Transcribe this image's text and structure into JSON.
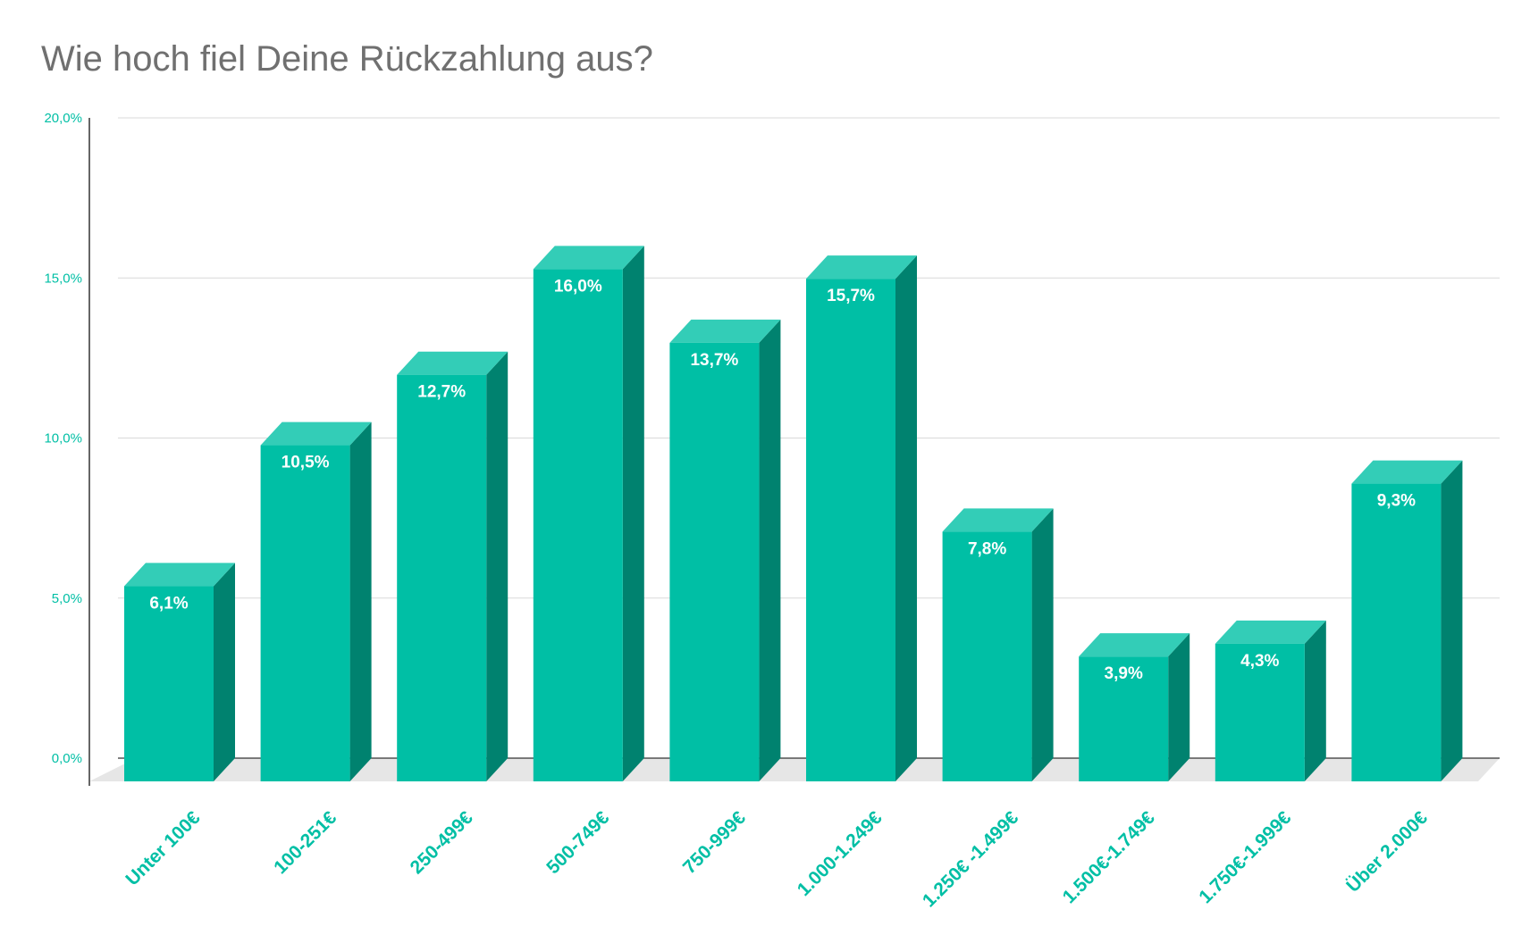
{
  "chart_data": {
    "type": "bar",
    "title": "Wie hoch fiel Deine Rückzahlung aus?",
    "xlabel": "",
    "ylabel": "",
    "ylim": [
      0,
      20
    ],
    "yticks": [
      {
        "value": 0,
        "label": "0,0%"
      },
      {
        "value": 5,
        "label": "5,0%"
      },
      {
        "value": 10,
        "label": "10,0%"
      },
      {
        "value": 15,
        "label": "15,0%"
      },
      {
        "value": 20,
        "label": "20,0%"
      }
    ],
    "grid": true,
    "three_d": true,
    "categories": [
      "Unter 100€",
      "100-251€",
      "250-499€",
      "500-749€",
      "750-999€",
      "1.000-1.249€",
      "1.250€ -1.499€",
      "1.500€-1.749€",
      "1.750€-1.999€",
      "Über 2.000€"
    ],
    "values": [
      6.1,
      10.5,
      12.7,
      16.0,
      13.7,
      15.7,
      7.8,
      3.9,
      4.3,
      9.3
    ],
    "data_labels": [
      "6,1%",
      "10,5%",
      "12,7%",
      "16,0%",
      "13,7%",
      "15,7%",
      "7,8%",
      "3,9%",
      "4,3%",
      "9,3%"
    ],
    "colors": {
      "bar_front": "#00BFA5",
      "bar_top": "#33CDB7",
      "bar_side": "#00826F",
      "floor": "#E6E6E6",
      "grid": "#D9D9D9",
      "axis": "#333333",
      "tick_label": "#00BFA5",
      "category_label": "#00BFA5",
      "data_label": "#FFFFFF",
      "title": "#707070"
    }
  }
}
